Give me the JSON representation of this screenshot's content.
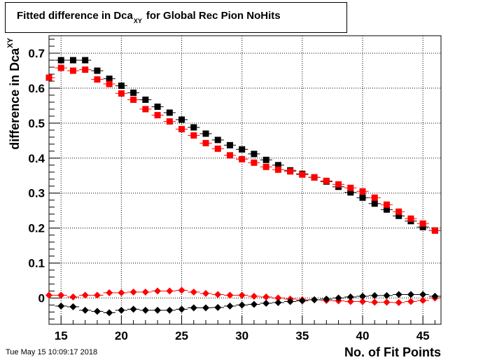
{
  "title": {
    "prefix": "Fitted difference in Dca",
    "subscript": "XY",
    "suffix": "for Global Rec Pion NoHits"
  },
  "timestamp": "Tue May 15 10:09:17 2018",
  "colors": {
    "black_series": "#000000",
    "red_series": "#ff0000",
    "grid": "#000000"
  },
  "chart_data": {
    "type": "scatter",
    "xlabel": "No. of Fit Points",
    "ylabel_main": "difference in Dca",
    "ylabel_subscript": "XY",
    "xlim": [
      14,
      46.5
    ],
    "ylim": [
      -0.075,
      0.75
    ],
    "xticks": [
      15,
      20,
      25,
      30,
      35,
      40,
      45
    ],
    "xtick_labels": [
      "15",
      "20",
      "25",
      "30",
      "35",
      "40",
      "45"
    ],
    "yticks": [
      0,
      0.1,
      0.2,
      0.3,
      0.4,
      0.5,
      0.6,
      0.7
    ],
    "ytick_labels": [
      "0",
      "0.1",
      "0.2",
      "0.3",
      "0.4",
      "0.5",
      "0.6",
      "0.7"
    ],
    "grid": true,
    "series": [
      {
        "marker": "square",
        "color": "#000000",
        "x": [
          15,
          16,
          17,
          18,
          19,
          20,
          21,
          22,
          23,
          24,
          25,
          26,
          27,
          28,
          29,
          30,
          31,
          32,
          33,
          34,
          35,
          36,
          37,
          38,
          39,
          40,
          41,
          42,
          43,
          44,
          45,
          46
        ],
        "y": [
          0.68,
          0.68,
          0.68,
          0.65,
          0.627,
          0.607,
          0.587,
          0.567,
          0.547,
          0.53,
          0.51,
          0.488,
          0.47,
          0.452,
          0.437,
          0.425,
          0.412,
          0.395,
          0.38,
          0.365,
          0.355,
          0.345,
          0.333,
          0.318,
          0.302,
          0.287,
          0.27,
          0.253,
          0.235,
          0.22,
          0.203,
          0.193
        ]
      },
      {
        "marker": "square",
        "color": "#ff0000",
        "x": [
          14,
          15,
          16,
          17,
          18,
          19,
          20,
          21,
          22,
          23,
          24,
          25,
          26,
          27,
          28,
          29,
          30,
          31,
          32,
          33,
          34,
          35,
          36,
          37,
          38,
          39,
          40,
          41,
          42,
          43,
          44,
          45,
          46
        ],
        "y": [
          0.63,
          0.658,
          0.65,
          0.653,
          0.625,
          0.612,
          0.585,
          0.567,
          0.54,
          0.523,
          0.505,
          0.483,
          0.465,
          0.443,
          0.427,
          0.408,
          0.397,
          0.387,
          0.375,
          0.367,
          0.362,
          0.353,
          0.345,
          0.335,
          0.325,
          0.315,
          0.305,
          0.287,
          0.267,
          0.247,
          0.227,
          0.213,
          0.193
        ]
      },
      {
        "marker": "diamond",
        "color": "#ff0000",
        "x": [
          14,
          15,
          16,
          17,
          18,
          19,
          20,
          21,
          22,
          23,
          24,
          25,
          26,
          27,
          28,
          29,
          30,
          31,
          32,
          33,
          34,
          35,
          36,
          37,
          38,
          39,
          40,
          41,
          42,
          43,
          44,
          45,
          46
        ],
        "y": [
          0.008,
          0.008,
          0.003,
          0.008,
          0.008,
          0.015,
          0.015,
          0.017,
          0.017,
          0.02,
          0.02,
          0.022,
          0.017,
          0.013,
          0.01,
          0.008,
          0.008,
          0.005,
          0.003,
          0.0,
          -0.003,
          -0.005,
          -0.005,
          -0.007,
          -0.008,
          -0.01,
          -0.01,
          -0.012,
          -0.012,
          -0.013,
          -0.01,
          -0.007,
          0.0
        ]
      },
      {
        "marker": "diamond",
        "color": "#000000",
        "x": [
          15,
          16,
          17,
          18,
          19,
          20,
          21,
          22,
          23,
          24,
          25,
          26,
          27,
          28,
          29,
          30,
          31,
          32,
          33,
          34,
          35,
          36,
          37,
          38,
          39,
          40,
          41,
          42,
          43,
          44,
          45,
          46
        ],
        "y": [
          -0.023,
          -0.025,
          -0.035,
          -0.038,
          -0.042,
          -0.035,
          -0.032,
          -0.035,
          -0.035,
          -0.035,
          -0.032,
          -0.028,
          -0.028,
          -0.027,
          -0.023,
          -0.02,
          -0.018,
          -0.015,
          -0.013,
          -0.01,
          -0.008,
          -0.005,
          -0.003,
          0.0,
          0.003,
          0.005,
          0.007,
          0.007,
          0.01,
          0.01,
          0.01,
          0.005
        ]
      }
    ]
  }
}
